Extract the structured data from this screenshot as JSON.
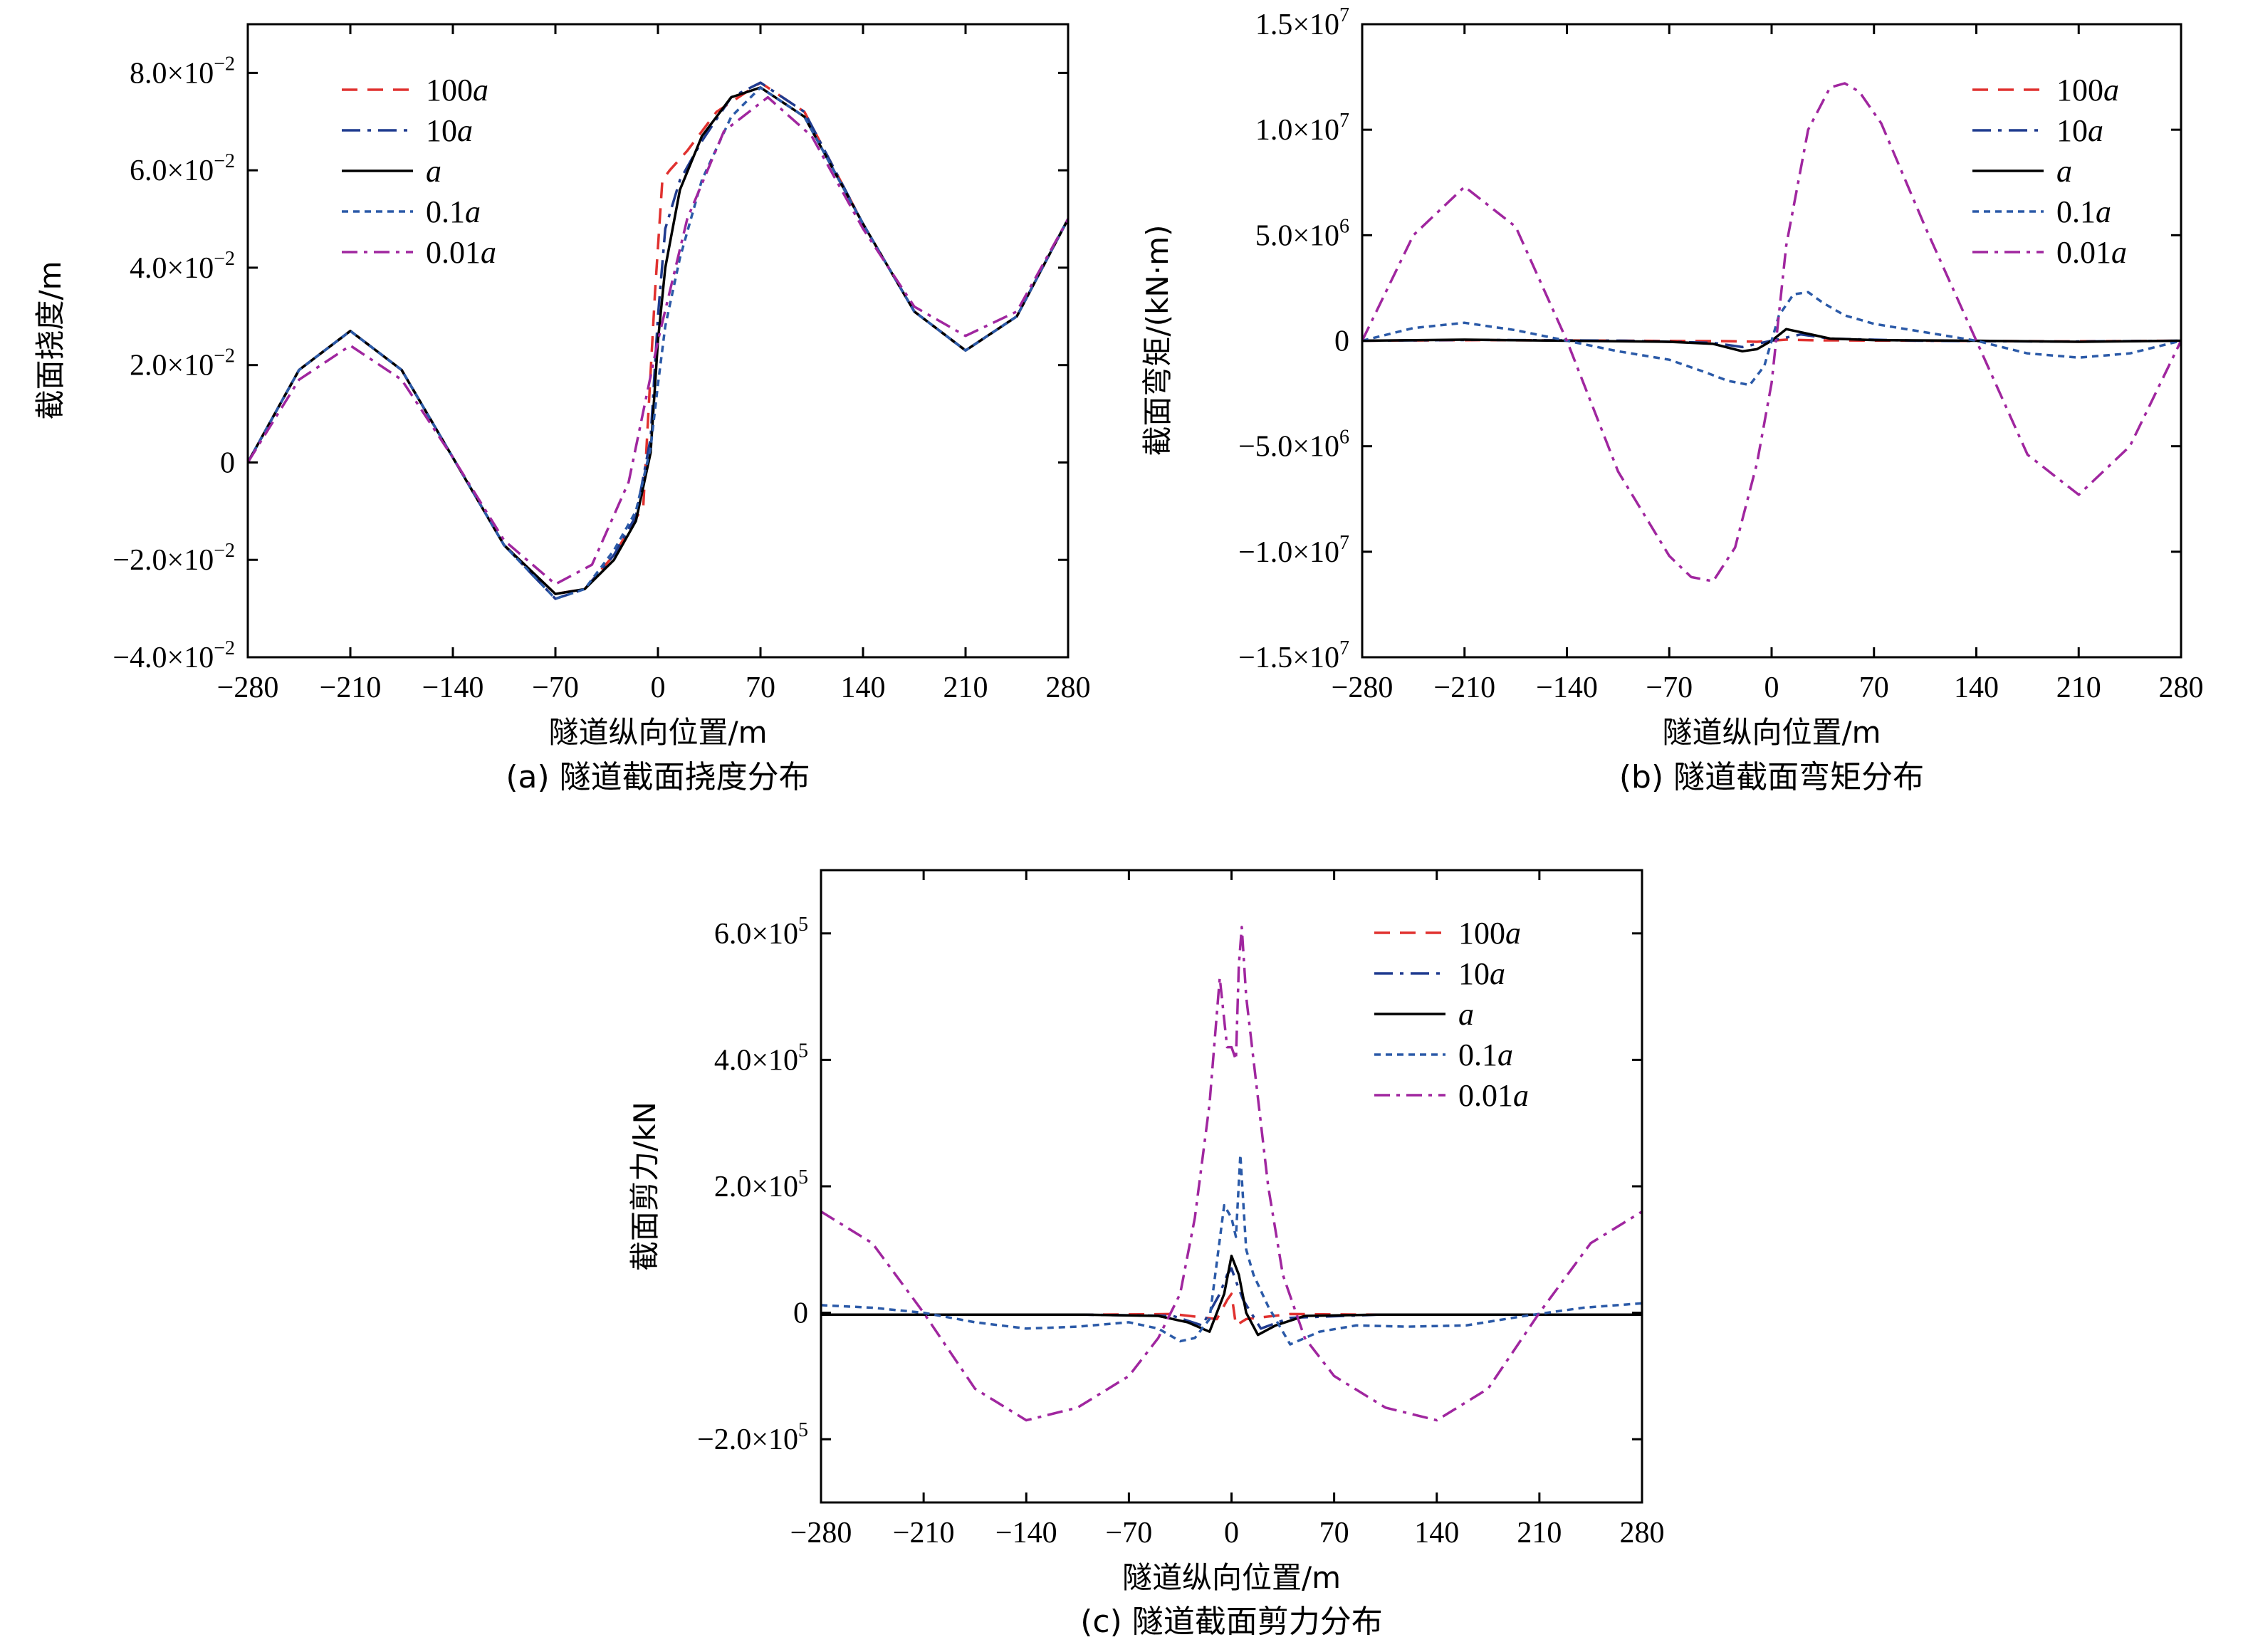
{
  "figure": {
    "series_legend": [
      {
        "id": "s100a",
        "coef": "100",
        "var": "a",
        "color": "#e0312f",
        "dash": "22 14"
      },
      {
        "id": "s10a",
        "coef": "10",
        "var": "a",
        "color": "#1f3b8f",
        "dash": "26 10 5 10"
      },
      {
        "id": "s1a",
        "coef": "",
        "var": "a",
        "color": "#000000",
        "dash": ""
      },
      {
        "id": "s01a",
        "coef": "0.1",
        "var": "a",
        "color": "#2b5aa8",
        "dash": "9 7"
      },
      {
        "id": "s001a",
        "coef": "0.01",
        "var": "a",
        "color": "#a0269f",
        "dash": "22 9 5 9"
      }
    ]
  },
  "chart_data": [
    {
      "type": "line",
      "caption": "(a) 隧道截面挠度分布",
      "xlabel": "隧道纵向位置/m",
      "ylabel": "截面挠度/m",
      "xlim": [
        -280,
        280
      ],
      "ylim": [
        -0.04,
        0.09
      ],
      "xticks": [
        -280,
        -210,
        -140,
        -70,
        0,
        70,
        140,
        210,
        280
      ],
      "xtick_labels": [
        "−280",
        "−210",
        "−140",
        "−70",
        "0",
        "70",
        "140",
        "210",
        "280"
      ],
      "yticks": [
        -0.04,
        -0.02,
        0,
        0.02,
        0.04,
        0.06,
        0.08
      ],
      "ytick_labels": [
        {
          "base": "−4.0×10",
          "exp": "−2"
        },
        {
          "base": "−2.0×10",
          "exp": "−2"
        },
        {
          "base": "0",
          "exp": ""
        },
        {
          "base": "2.0×10",
          "exp": "−2"
        },
        {
          "base": "4.0×10",
          "exp": "−2"
        },
        {
          "base": "6.0×10",
          "exp": "−2"
        },
        {
          "base": "8.0×10",
          "exp": "−2"
        }
      ],
      "legend_position": "top-left",
      "series": [
        {
          "id": "s100a",
          "x": [
            -280,
            -245,
            -210,
            -175,
            -140,
            -105,
            -70,
            -50,
            -30,
            -10,
            -2,
            3,
            8,
            20,
            40,
            70,
            100,
            140,
            175,
            210,
            245,
            280
          ],
          "y": [
            0,
            0.019,
            0.027,
            0.019,
            0.001,
            -0.017,
            -0.027,
            -0.026,
            -0.019,
            -0.009,
            0.035,
            0.058,
            0.06,
            0.064,
            0.072,
            0.078,
            0.072,
            0.049,
            0.031,
            0.023,
            0.03,
            0.05
          ]
        },
        {
          "id": "s10a",
          "x": [
            -280,
            -245,
            -210,
            -175,
            -140,
            -105,
            -70,
            -50,
            -30,
            -15,
            -5,
            0,
            5,
            15,
            30,
            50,
            70,
            100,
            140,
            175,
            210,
            245,
            280
          ],
          "y": [
            0,
            0.019,
            0.027,
            0.019,
            0.001,
            -0.017,
            -0.028,
            -0.026,
            -0.019,
            -0.011,
            0.005,
            0.03,
            0.048,
            0.058,
            0.066,
            0.075,
            0.078,
            0.072,
            0.049,
            0.031,
            0.023,
            0.03,
            0.05
          ]
        },
        {
          "id": "s1a",
          "x": [
            -280,
            -245,
            -210,
            -175,
            -140,
            -105,
            -70,
            -50,
            -30,
            -15,
            -5,
            0,
            5,
            15,
            30,
            50,
            70,
            100,
            140,
            175,
            210,
            245,
            280
          ],
          "y": [
            0,
            0.019,
            0.027,
            0.019,
            0.001,
            -0.017,
            -0.027,
            -0.026,
            -0.02,
            -0.012,
            0.002,
            0.025,
            0.04,
            0.056,
            0.067,
            0.075,
            0.077,
            0.071,
            0.049,
            0.031,
            0.023,
            0.03,
            0.05
          ]
        },
        {
          "id": "s01a",
          "x": [
            -280,
            -245,
            -210,
            -175,
            -140,
            -105,
            -70,
            -50,
            -30,
            -15,
            -5,
            0,
            5,
            15,
            30,
            50,
            70,
            100,
            140,
            175,
            210,
            245,
            280
          ],
          "y": [
            0,
            0.019,
            0.027,
            0.019,
            0.001,
            -0.017,
            -0.028,
            -0.026,
            -0.018,
            -0.01,
            0.003,
            0.016,
            0.028,
            0.042,
            0.058,
            0.071,
            0.077,
            0.071,
            0.049,
            0.031,
            0.023,
            0.03,
            0.05
          ]
        },
        {
          "id": "s001a",
          "x": [
            -280,
            -245,
            -210,
            -175,
            -140,
            -105,
            -70,
            -45,
            -20,
            0,
            20,
            45,
            75,
            105,
            140,
            175,
            210,
            245,
            280
          ],
          "y": [
            0,
            0.017,
            0.024,
            0.017,
            0.001,
            -0.016,
            -0.025,
            -0.021,
            -0.004,
            0.025,
            0.05,
            0.068,
            0.075,
            0.067,
            0.048,
            0.032,
            0.026,
            0.031,
            0.05
          ]
        }
      ]
    },
    {
      "type": "line",
      "caption": "(b) 隧道截面弯矩分布",
      "xlabel": "隧道纵向位置/m",
      "ylabel": "截面弯矩/(kN·m)",
      "xlim": [
        -280,
        280
      ],
      "ylim": [
        -15000000,
        15000000
      ],
      "xticks": [
        -280,
        -210,
        -140,
        -70,
        0,
        70,
        140,
        210,
        280
      ],
      "xtick_labels": [
        "−280",
        "−210",
        "−140",
        "−70",
        "0",
        "70",
        "140",
        "210",
        "280"
      ],
      "yticks": [
        -15000000,
        -10000000,
        -5000000,
        0,
        5000000,
        10000000,
        15000000
      ],
      "ytick_labels": [
        {
          "base": "−1.5×10",
          "exp": "7"
        },
        {
          "base": "−1.0×10",
          "exp": "7"
        },
        {
          "base": "−5.0×10",
          "exp": "6"
        },
        {
          "base": "0",
          "exp": ""
        },
        {
          "base": "5.0×10",
          "exp": "6"
        },
        {
          "base": "1.0×10",
          "exp": "7"
        },
        {
          "base": "1.5×10",
          "exp": "7"
        }
      ],
      "legend_position": "top-right",
      "series": [
        {
          "id": "s100a",
          "x": [
            -280,
            -200,
            -100,
            -30,
            -10,
            0,
            10,
            30,
            100,
            200,
            280
          ],
          "y": [
            0,
            30000,
            0,
            -20000,
            -50000,
            0,
            50000,
            20000,
            0,
            -30000,
            0
          ]
        },
        {
          "id": "s10a",
          "x": [
            -280,
            -200,
            -100,
            -40,
            -20,
            -10,
            0,
            10,
            20,
            40,
            100,
            200,
            280
          ],
          "y": [
            0,
            40000,
            0,
            -100000,
            -300000,
            -150000,
            0,
            150000,
            300000,
            100000,
            0,
            -40000,
            0
          ]
        },
        {
          "id": "s1a",
          "x": [
            -280,
            -210,
            -140,
            -70,
            -40,
            -20,
            -10,
            0,
            10,
            20,
            40,
            70,
            140,
            210,
            280
          ],
          "y": [
            0,
            50000,
            0,
            -50000,
            -150000,
            -500000,
            -400000,
            0,
            550000,
            400000,
            100000,
            30000,
            0,
            -50000,
            0
          ]
        },
        {
          "id": "s01a",
          "x": [
            -280,
            -245,
            -210,
            -175,
            -140,
            -105,
            -70,
            -45,
            -30,
            -15,
            -5,
            0,
            5,
            15,
            25,
            35,
            50,
            70,
            105,
            140,
            175,
            210,
            245,
            280
          ],
          "y": [
            0,
            600000,
            850000,
            500000,
            0,
            -500000,
            -900000,
            -1500000,
            -1900000,
            -2100000,
            -1200000,
            0,
            1200000,
            2200000,
            2300000,
            1800000,
            1200000,
            800000,
            400000,
            0,
            -600000,
            -800000,
            -600000,
            0
          ]
        },
        {
          "id": "s001a",
          "x": [
            -280,
            -245,
            -210,
            -175,
            -140,
            -105,
            -70,
            -55,
            -40,
            -25,
            -10,
            0,
            10,
            25,
            40,
            50,
            60,
            75,
            105,
            140,
            175,
            210,
            245,
            280
          ],
          "y": [
            0,
            5000000,
            7300000,
            5400000,
            0,
            -6200000,
            -10200000,
            -11200000,
            -11400000,
            -9800000,
            -5800000,
            -2000000,
            4500000,
            10000000,
            12000000,
            12200000,
            11800000,
            10300000,
            5400000,
            0,
            -5400000,
            -7300000,
            -5000000,
            0
          ]
        }
      ]
    },
    {
      "type": "line",
      "caption": "(c) 隧道截面剪力分布",
      "xlabel": "隧道纵向位置/m",
      "ylabel": "截面剪力/kN",
      "xlim": [
        -280,
        280
      ],
      "ylim": [
        -300000,
        700000
      ],
      "xticks": [
        -280,
        -210,
        -140,
        -70,
        0,
        70,
        140,
        210,
        280
      ],
      "xtick_labels": [
        "−280",
        "−210",
        "−140",
        "−70",
        "0",
        "70",
        "140",
        "210",
        "280"
      ],
      "yticks": [
        -200000,
        0,
        200000,
        400000,
        600000
      ],
      "ytick_labels": [
        {
          "base": "−2.0×10",
          "exp": "5"
        },
        {
          "base": "0",
          "exp": ""
        },
        {
          "base": "2.0×10",
          "exp": "5"
        },
        {
          "base": "4.0×10",
          "exp": "5"
        },
        {
          "base": "6.0×10",
          "exp": "5"
        }
      ],
      "legend_position": "top-right",
      "series": [
        {
          "id": "s100a",
          "x": [
            -280,
            -100,
            -40,
            -10,
            -3,
            0,
            3,
            10,
            40,
            100,
            280
          ],
          "y": [
            -3000,
            -3000,
            -2000,
            -10000,
            20000,
            30000,
            -20000,
            -10000,
            -2000,
            -3000,
            -3000
          ]
        },
        {
          "id": "s10a",
          "x": [
            -280,
            -100,
            -40,
            -20,
            -8,
            -3,
            0,
            3,
            8,
            20,
            40,
            100,
            280
          ],
          "y": [
            -3000,
            -3000,
            -5000,
            -20000,
            30000,
            60000,
            70000,
            50000,
            20000,
            -25000,
            -8000,
            -3000,
            -3000
          ]
        },
        {
          "id": "s1a",
          "x": [
            -280,
            -100,
            -50,
            -30,
            -15,
            -5,
            0,
            5,
            10,
            18,
            30,
            50,
            100,
            280
          ],
          "y": [
            -3000,
            -3000,
            -5000,
            -15000,
            -30000,
            30000,
            90000,
            60000,
            0,
            -35000,
            -20000,
            -5000,
            -3000,
            -3000
          ]
        },
        {
          "id": "s01a",
          "x": [
            -280,
            -245,
            -210,
            -175,
            -140,
            -105,
            -70,
            -50,
            -35,
            -25,
            -15,
            -5,
            0,
            3,
            6,
            10,
            15,
            25,
            40,
            60,
            85,
            120,
            160,
            200,
            240,
            280
          ],
          "y": [
            12000,
            8000,
            0,
            -15000,
            -25000,
            -22000,
            -15000,
            -25000,
            -45000,
            -40000,
            -10000,
            170000,
            150000,
            120000,
            250000,
            100000,
            60000,
            10000,
            -50000,
            -30000,
            -20000,
            -22000,
            -20000,
            -5000,
            8000,
            15000
          ]
        },
        {
          "id": "s001a",
          "x": [
            -280,
            -245,
            -210,
            -175,
            -140,
            -105,
            -70,
            -50,
            -35,
            -25,
            -15,
            -8,
            -3,
            0,
            3,
            5,
            7,
            10,
            15,
            25,
            35,
            50,
            70,
            105,
            140,
            175,
            210,
            245,
            280
          ],
          "y": [
            160000,
            110000,
            0,
            -120000,
            -170000,
            -150000,
            -100000,
            -40000,
            30000,
            150000,
            330000,
            530000,
            420000,
            420000,
            400000,
            550000,
            610000,
            500000,
            400000,
            200000,
            60000,
            -40000,
            -100000,
            -150000,
            -170000,
            -120000,
            0,
            110000,
            160000
          ]
        }
      ]
    }
  ]
}
